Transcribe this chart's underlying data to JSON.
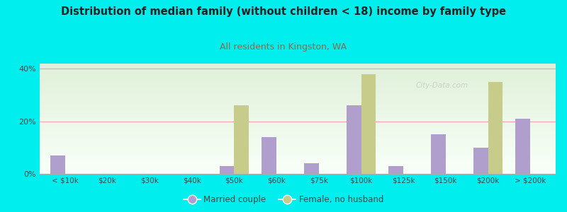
{
  "title": "Distribution of median family (without children < 18) income by family type",
  "subtitle": "All residents in Kingston, WA",
  "categories": [
    "< $10k",
    "$20k",
    "$30k",
    "$40k",
    "$50k",
    "$60k",
    "$75k",
    "$100k",
    "$125k",
    "$150k",
    "$200k",
    "> $200k"
  ],
  "married_couple": [
    7,
    0,
    0,
    0,
    3,
    14,
    4,
    26,
    3,
    15,
    10,
    21
  ],
  "female_no_husband": [
    0,
    0,
    0,
    0,
    26,
    0,
    0,
    38,
    0,
    0,
    35,
    0
  ],
  "married_color": "#b09fcc",
  "female_color": "#c8cc8a",
  "bg_color": "#00eeee",
  "plot_bg_top": "#dff0d8",
  "plot_bg_bottom": "#f8fff8",
  "title_color": "#222222",
  "subtitle_color": "#996644",
  "axis_label_color": "#444444",
  "grid_color": "#f0a0b8",
  "ylim": [
    0,
    42
  ],
  "yticks": [
    0,
    20,
    40
  ],
  "watermark": "City-Data.com"
}
